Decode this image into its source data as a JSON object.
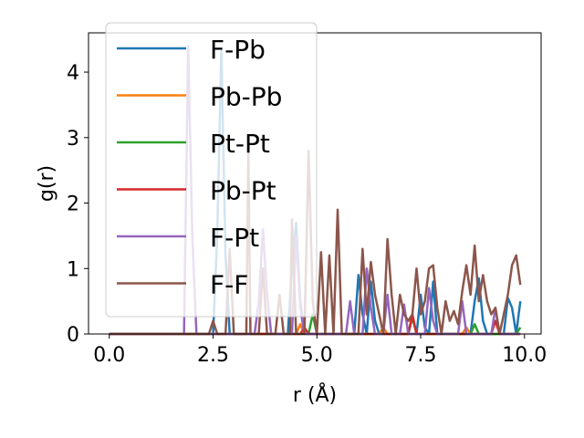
{
  "chart_data": {
    "type": "line",
    "title": "",
    "xlabel": "r (Å)",
    "ylabel": "g(r)",
    "xlim": [
      -0.5,
      10.4
    ],
    "ylim": [
      0,
      4.6
    ],
    "xticks": [
      0.0,
      2.5,
      5.0,
      7.5,
      10.0
    ],
    "xtick_labels": [
      "0.0",
      "2.5",
      "5.0",
      "7.5",
      "10.0"
    ],
    "yticks": [
      0,
      1,
      2,
      3,
      4
    ],
    "ytick_labels": [
      "0",
      "1",
      "2",
      "3",
      "4"
    ],
    "grid": false,
    "legend_position": "top-left",
    "series": [
      {
        "name": "F-Pb",
        "color": "#1f77b4",
        "points": [
          [
            0,
            0
          ],
          [
            2.5,
            0
          ],
          [
            2.6,
            1.5
          ],
          [
            2.7,
            4.35
          ],
          [
            2.8,
            1.2
          ],
          [
            2.9,
            0
          ],
          [
            4.3,
            0
          ],
          [
            4.4,
            1.0
          ],
          [
            4.5,
            1.7
          ],
          [
            4.6,
            0.5
          ],
          [
            4.7,
            0
          ],
          [
            5.9,
            0
          ],
          [
            6.0,
            0.9
          ],
          [
            6.1,
            0.3
          ],
          [
            6.2,
            0
          ],
          [
            6.3,
            0.8
          ],
          [
            6.4,
            0.2
          ],
          [
            6.5,
            0
          ],
          [
            7.4,
            0
          ],
          [
            7.5,
            0.6
          ],
          [
            7.6,
            0.1
          ],
          [
            7.7,
            0
          ],
          [
            7.8,
            0.8
          ],
          [
            7.9,
            0
          ],
          [
            8.7,
            0
          ],
          [
            8.8,
            0.5
          ],
          [
            8.9,
            0.85
          ],
          [
            9.0,
            0.2
          ],
          [
            9.1,
            0
          ],
          [
            9.5,
            0
          ],
          [
            9.6,
            0.55
          ],
          [
            9.7,
            0.4
          ],
          [
            9.8,
            0
          ],
          [
            9.9,
            0.5
          ]
        ]
      },
      {
        "name": "Pb-Pb",
        "color": "#ff7f0e",
        "points": [
          [
            0,
            0
          ],
          [
            4.5,
            0
          ],
          [
            4.6,
            0.15
          ],
          [
            4.7,
            0
          ],
          [
            6.5,
            0
          ],
          [
            6.6,
            0.1
          ],
          [
            6.7,
            0
          ],
          [
            8.5,
            0
          ],
          [
            8.6,
            0.1
          ],
          [
            8.7,
            0
          ],
          [
            9.9,
            0
          ]
        ]
      },
      {
        "name": "Pt-Pt",
        "color": "#2ca02c",
        "points": [
          [
            0,
            0
          ],
          [
            4.8,
            0
          ],
          [
            4.9,
            0.3
          ],
          [
            5.0,
            0
          ],
          [
            7.2,
            0
          ],
          [
            7.3,
            0.25
          ],
          [
            7.4,
            0
          ],
          [
            8.7,
            0
          ],
          [
            8.8,
            0.15
          ],
          [
            8.9,
            0
          ],
          [
            9.8,
            0
          ],
          [
            9.9,
            0.1
          ]
        ]
      },
      {
        "name": "Pb-Pt",
        "color": "#d62728",
        "points": [
          [
            0,
            0
          ],
          [
            4.6,
            0
          ],
          [
            4.7,
            0.1
          ],
          [
            4.8,
            0
          ],
          [
            7.2,
            0
          ],
          [
            7.3,
            0.3
          ],
          [
            7.4,
            0
          ],
          [
            9.2,
            0
          ],
          [
            9.3,
            0.2
          ],
          [
            9.4,
            0
          ],
          [
            9.9,
            0
          ]
        ]
      },
      {
        "name": "F-Pt",
        "color": "#9467bd",
        "points": [
          [
            0,
            0
          ],
          [
            1.8,
            0
          ],
          [
            1.9,
            4.4
          ],
          [
            2.0,
            1.5
          ],
          [
            2.1,
            0
          ],
          [
            3.5,
            0
          ],
          [
            3.6,
            0.5
          ],
          [
            3.7,
            1.6
          ],
          [
            3.8,
            0.6
          ],
          [
            3.9,
            0
          ],
          [
            4.4,
            0
          ],
          [
            4.5,
            1.5
          ],
          [
            4.6,
            0.4
          ],
          [
            4.7,
            0
          ],
          [
            5.7,
            0
          ],
          [
            5.8,
            0.5
          ],
          [
            5.9,
            0
          ],
          [
            6.1,
            0
          ],
          [
            6.2,
            1.0
          ],
          [
            6.3,
            0.4
          ],
          [
            6.4,
            0
          ],
          [
            6.6,
            0
          ],
          [
            6.7,
            0.6
          ],
          [
            6.8,
            0
          ],
          [
            7.0,
            0
          ],
          [
            7.1,
            0.45
          ],
          [
            7.2,
            0
          ],
          [
            7.6,
            0
          ],
          [
            7.7,
            0.7
          ],
          [
            7.8,
            0.2
          ],
          [
            7.9,
            0
          ],
          [
            8.4,
            0
          ],
          [
            8.5,
            0.5
          ],
          [
            8.6,
            0
          ],
          [
            9.2,
            0
          ],
          [
            9.3,
            0.4
          ],
          [
            9.4,
            0
          ],
          [
            9.9,
            0
          ]
        ]
      },
      {
        "name": "F-F",
        "color": "#8c564b",
        "points": [
          [
            0,
            0
          ],
          [
            2.4,
            0
          ],
          [
            2.5,
            0.2
          ],
          [
            2.6,
            0
          ],
          [
            2.8,
            0
          ],
          [
            2.9,
            1.3
          ],
          [
            3.0,
            0
          ],
          [
            3.3,
            0
          ],
          [
            3.35,
            2.8
          ],
          [
            3.4,
            0
          ],
          [
            3.6,
            0
          ],
          [
            3.7,
            1.0
          ],
          [
            3.8,
            0
          ],
          [
            4.0,
            0
          ],
          [
            4.1,
            0.6
          ],
          [
            4.2,
            0
          ],
          [
            4.35,
            0
          ],
          [
            4.4,
            1.75
          ],
          [
            4.5,
            0
          ],
          [
            4.7,
            0
          ],
          [
            4.8,
            2.8
          ],
          [
            4.9,
            0.5
          ],
          [
            5.0,
            0
          ],
          [
            5.1,
            1.25
          ],
          [
            5.2,
            0
          ],
          [
            5.3,
            1.2
          ],
          [
            5.4,
            0
          ],
          [
            5.5,
            1.9
          ],
          [
            5.6,
            0
          ],
          [
            5.7,
            0
          ],
          [
            5.8,
            0
          ],
          [
            6.0,
            0
          ],
          [
            6.1,
            1.3
          ],
          [
            6.2,
            0.3
          ],
          [
            6.3,
            1.1
          ],
          [
            6.4,
            0.6
          ],
          [
            6.5,
            0.3
          ],
          [
            6.6,
            0
          ],
          [
            6.7,
            1.45
          ],
          [
            6.8,
            0.6
          ],
          [
            6.9,
            0
          ],
          [
            7.0,
            0.6
          ],
          [
            7.1,
            0.3
          ],
          [
            7.2,
            0.2
          ],
          [
            7.3,
            0.3
          ],
          [
            7.4,
            1.0
          ],
          [
            7.5,
            0.3
          ],
          [
            7.6,
            0.5
          ],
          [
            7.7,
            1.0
          ],
          [
            7.8,
            1.05
          ],
          [
            7.9,
            0.4
          ],
          [
            8.0,
            0
          ],
          [
            8.1,
            0.5
          ],
          [
            8.2,
            0.2
          ],
          [
            8.3,
            0.35
          ],
          [
            8.4,
            0.15
          ],
          [
            8.5,
            0.65
          ],
          [
            8.6,
            1.05
          ],
          [
            8.7,
            0.6
          ],
          [
            8.8,
            1.35
          ],
          [
            8.9,
            0.5
          ],
          [
            9.0,
            0.9
          ],
          [
            9.1,
            0.5
          ],
          [
            9.2,
            0.3
          ],
          [
            9.3,
            0.4
          ],
          [
            9.4,
            0
          ],
          [
            9.5,
            0.3
          ],
          [
            9.6,
            0.6
          ],
          [
            9.7,
            1.05
          ],
          [
            9.8,
            1.2
          ],
          [
            9.9,
            0.75
          ]
        ]
      }
    ]
  }
}
